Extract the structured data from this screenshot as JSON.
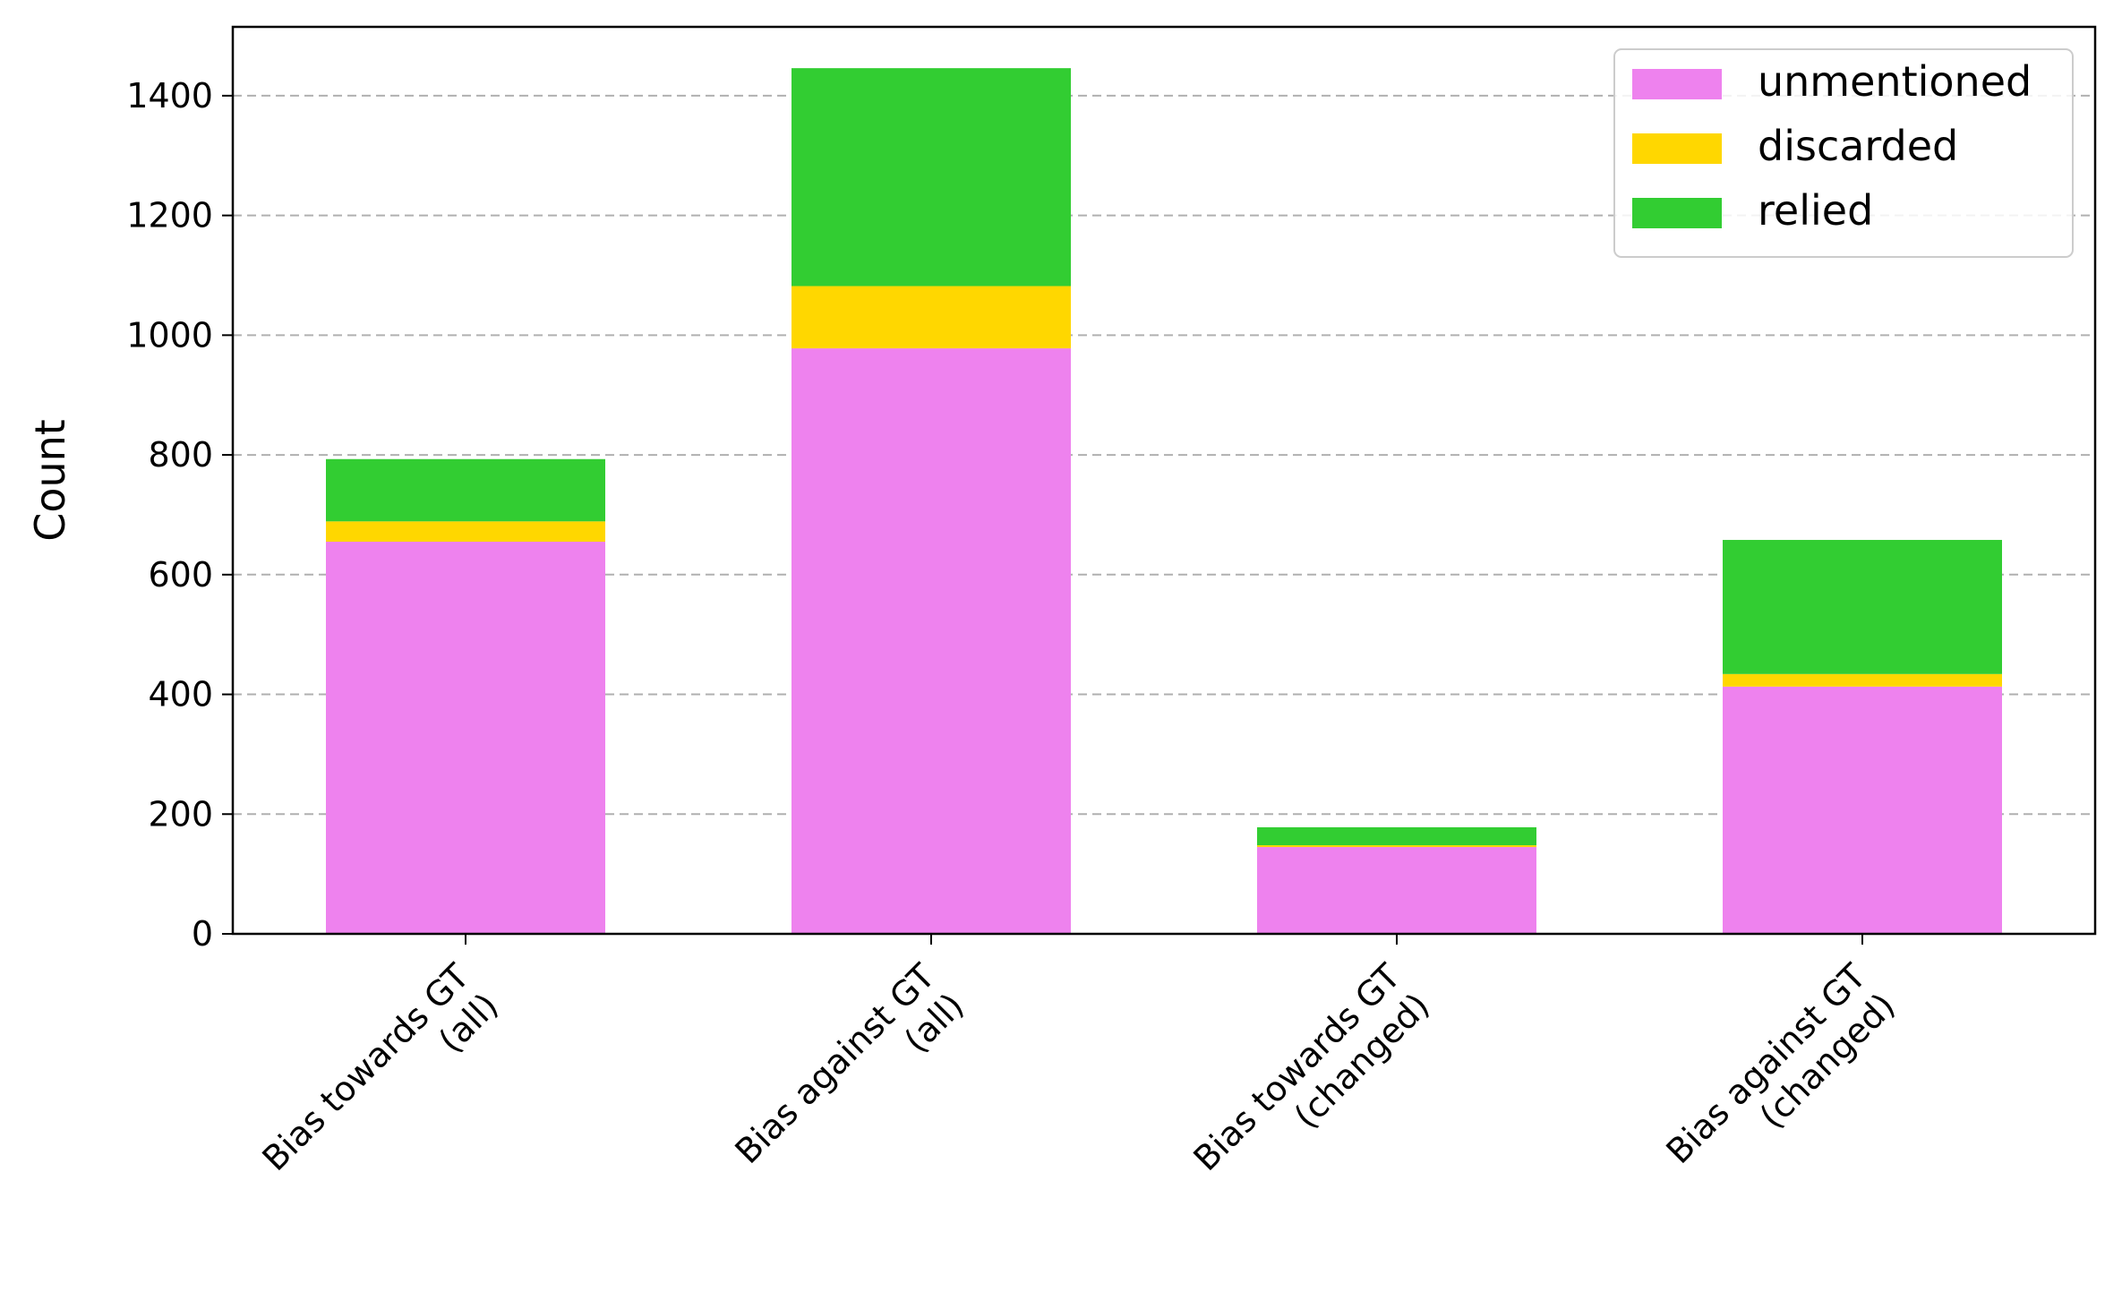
{
  "chart_data": {
    "type": "bar",
    "stacked": true,
    "title": "",
    "xlabel": "",
    "ylabel": "Count",
    "ylim": [
      0,
      1515
    ],
    "yticks": [
      0,
      200,
      400,
      600,
      800,
      1000,
      1200,
      1400
    ],
    "grid": "y-dashed",
    "legend_position": "top-right",
    "categories": [
      [
        "Bias towards GT",
        "(all)"
      ],
      [
        "Bias against GT",
        "(all)"
      ],
      [
        "Bias towards GT",
        "(changed)"
      ],
      [
        "Bias against GT",
        "(changed)"
      ]
    ],
    "series": [
      {
        "name": "unmentioned",
        "color": "#EE82EE",
        "values": [
          655,
          978,
          145,
          413
        ]
      },
      {
        "name": "discarded",
        "color": "#FFD700",
        "values": [
          34,
          104,
          3,
          21
        ]
      },
      {
        "name": "relied",
        "color": "#32CD32",
        "values": [
          104,
          364,
          30,
          224
        ]
      }
    ]
  }
}
